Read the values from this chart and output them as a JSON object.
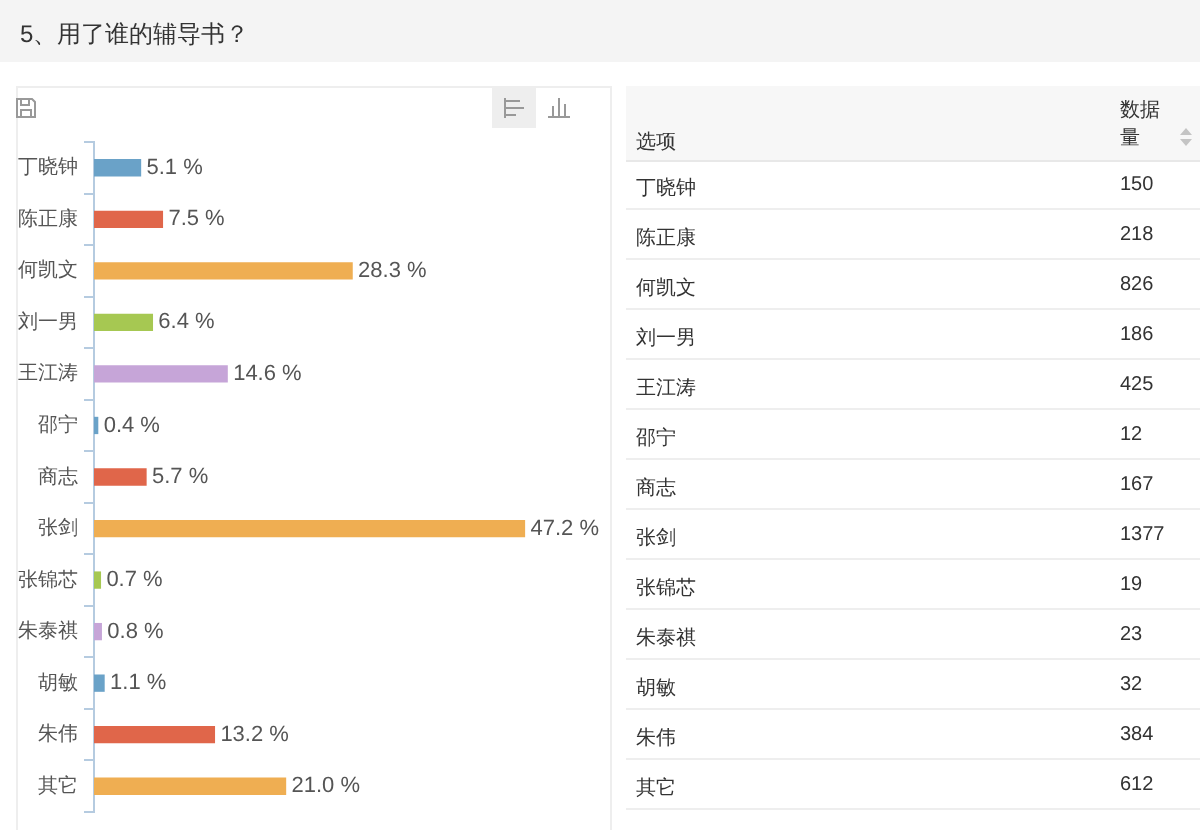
{
  "chart_data": [
    {
      "type": "bar",
      "title": "5、用了谁的辅导书？",
      "orientation": "horizontal",
      "categories": [
        "丁晓钟",
        "陈正康",
        "何凯文",
        "刘一男",
        "王江涛",
        "邵宁",
        "商志",
        "张剑",
        "张锦芯",
        "朱泰祺",
        "胡敏",
        "朱伟",
        "其它"
      ],
      "values": [
        5.1,
        7.5,
        28.3,
        6.4,
        14.6,
        0.4,
        5.7,
        47.2,
        0.7,
        0.8,
        1.1,
        13.2,
        21.0
      ],
      "colors": [
        "#6aa2c8",
        "#e0664a",
        "#efae52",
        "#a6c852",
        "#c6a5d8",
        "#6aa2c8",
        "#e0664a",
        "#efae52",
        "#a6c852",
        "#c6a5d8",
        "#6aa2c8",
        "#e0664a",
        "#efae52"
      ],
      "value_labels": [
        "5.1 %",
        "7.5 %",
        "28.3 %",
        "6.4 %",
        "14.6 %",
        "0.4 %",
        "5.7 %",
        "47.2 %",
        "0.7 %",
        "0.8 %",
        "1.1 %",
        "13.2 %",
        "21.0 %"
      ],
      "tick_labels": "y"
    },
    {
      "type": "other",
      "xlabel": "选项",
      "ylabel": "数据量",
      "categories": [
        "丁晓钟",
        "陈正康",
        "何凯文",
        "刘一男",
        "王江涛",
        "邵宁",
        "商志",
        "张剑",
        "张锦芯",
        "朱泰祺",
        "胡敏",
        "朱伟",
        "其它"
      ],
      "values": [
        150,
        218,
        826,
        186,
        425,
        12,
        167,
        1377,
        19,
        23,
        32,
        384,
        612
      ],
      "data_labels": true
    }
  ]
}
